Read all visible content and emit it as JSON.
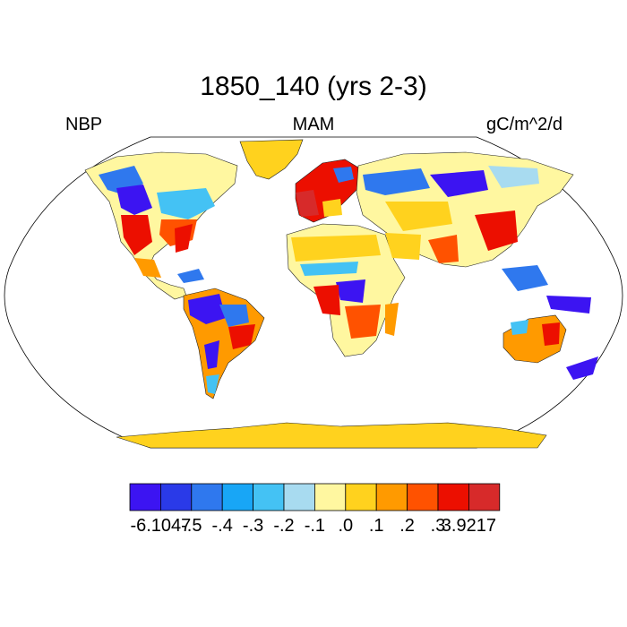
{
  "title": "1850_140 (yrs 2-3)",
  "left_label": "NBP",
  "center_label": "MAM",
  "right_label": "gC/m^2/d",
  "colorbar": {
    "colors": [
      "#3c14f2",
      "#2a3ae8",
      "#2f78ee",
      "#18a6f6",
      "#44c2f4",
      "#a8dbf0",
      "#fff7a0",
      "#ffd21e",
      "#ff9a00",
      "#ff5200",
      "#ec0f00",
      "#d72a2a"
    ],
    "labels": [
      "-6.1047",
      "-.5",
      "-.4",
      "-.3",
      "-.2",
      "-.1",
      ".0",
      ".1",
      ".2",
      ".3",
      "3.9217"
    ]
  },
  "land_colors": {
    "ocean": "#ffffff",
    "neutral": "#ffd21e",
    "light": "#fff7a0",
    "blue": "#2f78ee",
    "deep_blue": "#3c14f2",
    "red": "#ec0f00",
    "orange": "#ff5200"
  }
}
